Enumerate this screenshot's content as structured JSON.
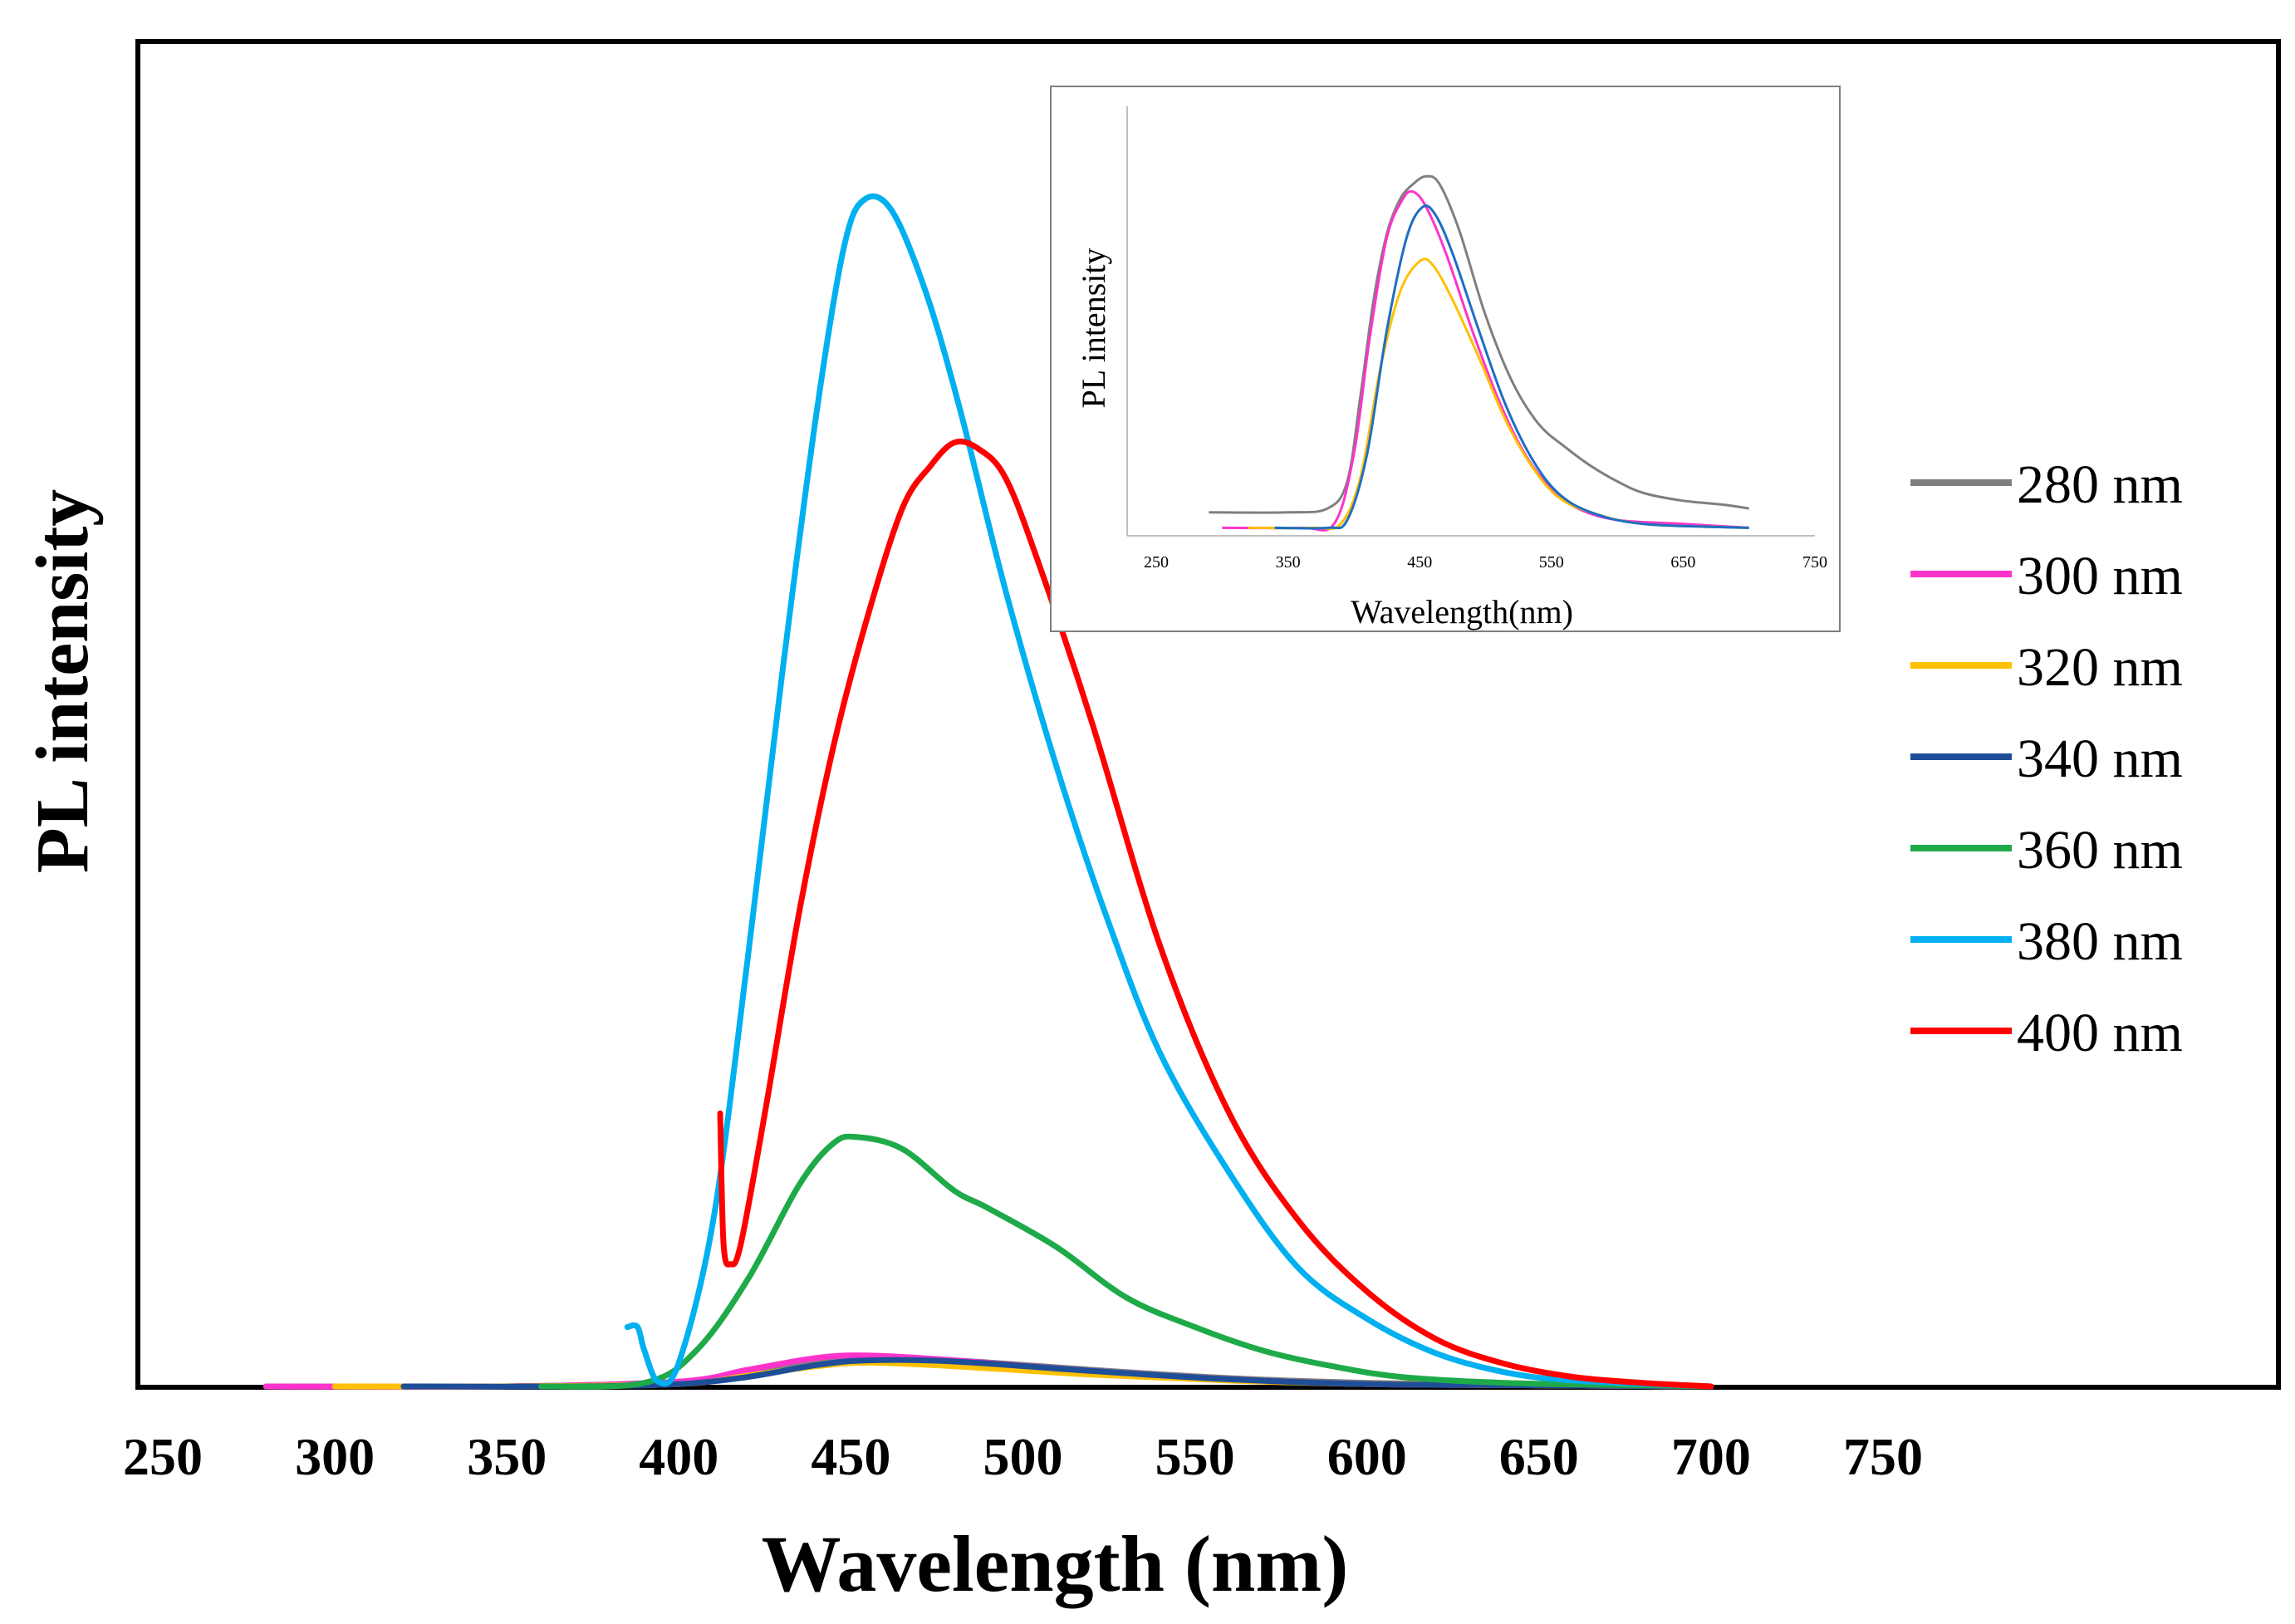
{
  "chart_data": [
    {
      "type": "line",
      "ylabel": "PL intensity",
      "xlabel": "Wavelength (nm)",
      "xlim": [
        250,
        750
      ],
      "ylim": [
        0,
        1.0
      ],
      "x_ticks": [
        "250",
        "300",
        "350",
        "400",
        "450",
        "500",
        "550",
        "600",
        "650",
        "700",
        "750"
      ],
      "legend_position": "right",
      "grid": false,
      "series": [
        {
          "name": "280 nm",
          "color": "#7f7f7f",
          "points": [
            [
              280,
              0
            ],
            [
              350,
              0
            ],
            [
              400,
              0.004
            ],
            [
              420,
              0.01
            ],
            [
              440,
              0.02
            ],
            [
              455,
              0.024
            ],
            [
              480,
              0.022
            ],
            [
              520,
              0.014
            ],
            [
              560,
              0.007
            ],
            [
              600,
              0.003
            ],
            [
              650,
              0.001
            ],
            [
              700,
              0
            ]
          ]
        },
        {
          "name": "300 nm",
          "color": "#ff33cc",
          "points": [
            [
              280,
              0
            ],
            [
              350,
              0
            ],
            [
              400,
              0.004
            ],
            [
              420,
              0.014
            ],
            [
              440,
              0.024
            ],
            [
              455,
              0.026
            ],
            [
              480,
              0.022
            ],
            [
              520,
              0.013
            ],
            [
              560,
              0.006
            ],
            [
              600,
              0.002
            ],
            [
              650,
              0.001
            ],
            [
              700,
              0
            ]
          ]
        },
        {
          "name": "320 nm",
          "color": "#ffc000",
          "points": [
            [
              300,
              0
            ],
            [
              350,
              0
            ],
            [
              400,
              0.002
            ],
            [
              420,
              0.009
            ],
            [
              440,
              0.017
            ],
            [
              455,
              0.02
            ],
            [
              480,
              0.017
            ],
            [
              520,
              0.01
            ],
            [
              560,
              0.005
            ],
            [
              600,
              0.002
            ],
            [
              650,
              0.001
            ],
            [
              700,
              0
            ]
          ]
        },
        {
          "name": "340 nm",
          "color": "#1f4e99",
          "points": [
            [
              320,
              0
            ],
            [
              370,
              0
            ],
            [
              400,
              0.002
            ],
            [
              420,
              0.008
            ],
            [
              440,
              0.018
            ],
            [
              455,
              0.022
            ],
            [
              480,
              0.021
            ],
            [
              520,
              0.013
            ],
            [
              560,
              0.006
            ],
            [
              600,
              0.002
            ],
            [
              650,
              0.001
            ],
            [
              700,
              0
            ]
          ]
        },
        {
          "name": "360 nm",
          "color": "#1faa4a",
          "points": [
            [
              360,
              0
            ],
            [
              390,
              0.003
            ],
            [
              405,
              0.03
            ],
            [
              420,
              0.09
            ],
            [
              435,
              0.17
            ],
            [
              445,
              0.205
            ],
            [
              452,
              0.21
            ],
            [
              465,
              0.2
            ],
            [
              480,
              0.165
            ],
            [
              490,
              0.15
            ],
            [
              510,
              0.117
            ],
            [
              530,
              0.075
            ],
            [
              550,
              0.05
            ],
            [
              570,
              0.03
            ],
            [
              590,
              0.017
            ],
            [
              610,
              0.008
            ],
            [
              640,
              0.003
            ],
            [
              680,
              0.001
            ],
            [
              700,
              0
            ]
          ]
        },
        {
          "name": "380 nm",
          "color": "#00b0f0",
          "points": [
            [
              385,
              0.05
            ],
            [
              388,
              0.05
            ],
            [
              390,
              0.03
            ],
            [
              394,
              0.004
            ],
            [
              400,
              0.02
            ],
            [
              410,
              0.14
            ],
            [
              420,
              0.36
            ],
            [
              430,
              0.6
            ],
            [
              440,
              0.82
            ],
            [
              448,
              0.96
            ],
            [
              454,
              1.0
            ],
            [
              462,
              0.99
            ],
            [
              472,
              0.92
            ],
            [
              482,
              0.82
            ],
            [
              495,
              0.67
            ],
            [
              510,
              0.52
            ],
            [
              525,
              0.39
            ],
            [
              540,
              0.28
            ],
            [
              560,
              0.18
            ],
            [
              580,
              0.1
            ],
            [
              600,
              0.057
            ],
            [
              620,
              0.028
            ],
            [
              640,
              0.012
            ],
            [
              660,
              0.005
            ],
            [
              700,
              0
            ]
          ]
        },
        {
          "name": "400 nm",
          "color": "#ff0000",
          "points": [
            [
              412,
              0.23
            ],
            [
              413,
              0.12
            ],
            [
              415,
              0.103
            ],
            [
              418,
              0.12
            ],
            [
              425,
              0.23
            ],
            [
              435,
              0.4
            ],
            [
              445,
              0.54
            ],
            [
              455,
              0.65
            ],
            [
              465,
              0.74
            ],
            [
              473,
              0.775
            ],
            [
              480,
              0.795
            ],
            [
              487,
              0.79
            ],
            [
              495,
              0.765
            ],
            [
              505,
              0.69
            ],
            [
              520,
              0.56
            ],
            [
              540,
              0.37
            ],
            [
              560,
              0.23
            ],
            [
              580,
              0.14
            ],
            [
              600,
              0.08
            ],
            [
              620,
              0.04
            ],
            [
              640,
              0.019
            ],
            [
              660,
              0.008
            ],
            [
              680,
              0.003
            ],
            [
              700,
              0
            ]
          ]
        }
      ]
    },
    {
      "type": "line",
      "ylabel": "PL intensity",
      "xlabel": "Wavelength(nm)",
      "xlim": [
        250,
        750
      ],
      "ylim": [
        0,
        1.0
      ],
      "x_ticks": [
        "250",
        "350",
        "450",
        "550",
        "650",
        "750"
      ],
      "series": [
        {
          "color": "#7f7f7f",
          "points": [
            [
              290,
              0.05
            ],
            [
              350,
              0.05
            ],
            [
              380,
              0.06
            ],
            [
              395,
              0.13
            ],
            [
              405,
              0.35
            ],
            [
              415,
              0.6
            ],
            [
              425,
              0.77
            ],
            [
              435,
              0.86
            ],
            [
              445,
              0.9
            ],
            [
              455,
              0.92
            ],
            [
              465,
              0.9
            ],
            [
              480,
              0.78
            ],
            [
              500,
              0.56
            ],
            [
              520,
              0.39
            ],
            [
              540,
              0.28
            ],
            [
              560,
              0.22
            ],
            [
              580,
              0.17
            ],
            [
              600,
              0.13
            ],
            [
              620,
              0.1
            ],
            [
              650,
              0.08
            ],
            [
              680,
              0.07
            ],
            [
              700,
              0.06
            ]
          ]
        },
        {
          "color": "#ff33cc",
          "points": [
            [
              300,
              0.01
            ],
            [
              360,
              0.01
            ],
            [
              385,
              0.02
            ],
            [
              400,
              0.2
            ],
            [
              412,
              0.5
            ],
            [
              425,
              0.76
            ],
            [
              437,
              0.86
            ],
            [
              445,
              0.88
            ],
            [
              455,
              0.84
            ],
            [
              470,
              0.72
            ],
            [
              490,
              0.52
            ],
            [
              510,
              0.34
            ],
            [
              530,
              0.2
            ],
            [
              550,
              0.11
            ],
            [
              570,
              0.06
            ],
            [
              600,
              0.03
            ],
            [
              650,
              0.02
            ],
            [
              700,
              0.01
            ]
          ]
        },
        {
          "color": "#ffc000",
          "points": [
            [
              320,
              0.01
            ],
            [
              370,
              0.01
            ],
            [
              390,
              0.02
            ],
            [
              405,
              0.14
            ],
            [
              420,
              0.42
            ],
            [
              435,
              0.62
            ],
            [
              450,
              0.7
            ],
            [
              460,
              0.69
            ],
            [
              475,
              0.6
            ],
            [
              495,
              0.45
            ],
            [
              515,
              0.29
            ],
            [
              535,
              0.17
            ],
            [
              555,
              0.09
            ],
            [
              580,
              0.05
            ],
            [
              620,
              0.02
            ],
            [
              700,
              0.01
            ]
          ]
        },
        {
          "color": "#1c6fc4",
          "points": [
            [
              340,
              0.01
            ],
            [
              380,
              0.01
            ],
            [
              395,
              0.03
            ],
            [
              410,
              0.2
            ],
            [
              425,
              0.52
            ],
            [
              440,
              0.76
            ],
            [
              452,
              0.84
            ],
            [
              462,
              0.82
            ],
            [
              475,
              0.72
            ],
            [
              495,
              0.52
            ],
            [
              515,
              0.33
            ],
            [
              535,
              0.19
            ],
            [
              555,
              0.1
            ],
            [
              580,
              0.05
            ],
            [
              620,
              0.02
            ],
            [
              700,
              0.01
            ]
          ]
        }
      ]
    }
  ]
}
